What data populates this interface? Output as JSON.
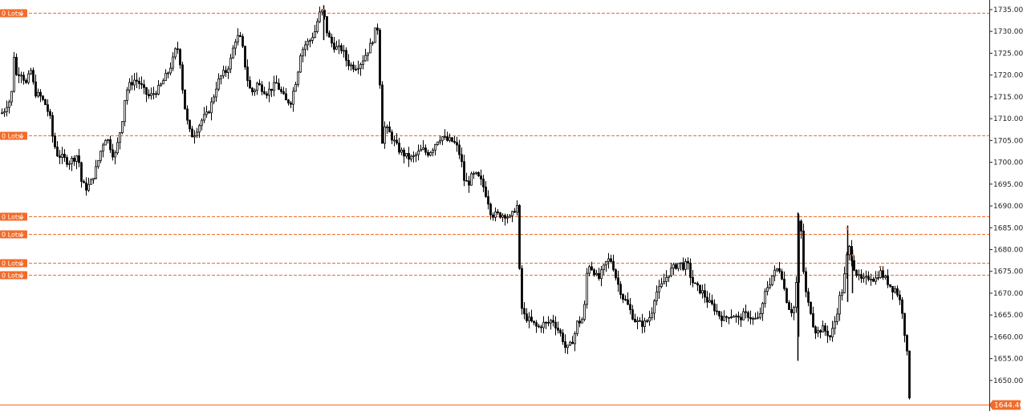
{
  "chart_data": {
    "type": "candlestick",
    "title": "",
    "xlabel": "",
    "ylabel": "",
    "ylim": [
      1643,
      1737.2
    ],
    "y_ticks": [
      "1735.00",
      "1730.00",
      "1725.00",
      "1720.00",
      "1715.00",
      "1710.00",
      "1705.00",
      "1700.00",
      "1695.00",
      "1690.00",
      "1685.00",
      "1680.00",
      "1675.00",
      "1670.00",
      "1665.00",
      "1660.00",
      "1655.00",
      "1650.00"
    ],
    "current_price": {
      "value": 1644.4,
      "label": "1644.40"
    },
    "order_levels": [
      {
        "price": 1734.2,
        "label": "0 Lots"
      },
      {
        "price": 1706.1,
        "label": "0 Lots"
      },
      {
        "price": 1687.7,
        "label": "0 Lots"
      },
      {
        "price": 1683.5,
        "label": "0 Lots"
      },
      {
        "price": 1676.9,
        "label": "0 Lots"
      },
      {
        "price": 1674.2,
        "label": "0 Lots"
      }
    ],
    "path": [
      [
        0,
        1712
      ],
      [
        3,
        1711
      ],
      [
        7,
        1713
      ],
      [
        11,
        1714
      ],
      [
        14,
        1716
      ],
      [
        16,
        1726
      ],
      [
        20,
        1720
      ],
      [
        25,
        1721
      ],
      [
        32,
        1718
      ],
      [
        38,
        1721
      ],
      [
        43,
        1716
      ],
      [
        50,
        1715
      ],
      [
        57,
        1713
      ],
      [
        62,
        1710
      ],
      [
        65,
        1706
      ],
      [
        70,
        1702
      ],
      [
        78,
        1701
      ],
      [
        85,
        1700
      ],
      [
        92,
        1701
      ],
      [
        97,
        1702
      ],
      [
        100,
        1696
      ],
      [
        106,
        1694
      ],
      [
        112,
        1695
      ],
      [
        120,
        1699
      ],
      [
        127,
        1704
      ],
      [
        132,
        1706
      ],
      [
        138,
        1703
      ],
      [
        142,
        1701
      ],
      [
        147,
        1705
      ],
      [
        152,
        1710
      ],
      [
        156,
        1716
      ],
      [
        162,
        1718
      ],
      [
        168,
        1719
      ],
      [
        174,
        1718
      ],
      [
        180,
        1716
      ],
      [
        186,
        1715
      ],
      [
        192,
        1716
      ],
      [
        198,
        1717
      ],
      [
        204,
        1719
      ],
      [
        210,
        1721
      ],
      [
        216,
        1724
      ],
      [
        220,
        1727
      ],
      [
        224,
        1723
      ],
      [
        228,
        1715
      ],
      [
        232,
        1710
      ],
      [
        236,
        1707
      ],
      [
        240,
        1706
      ],
      [
        246,
        1708
      ],
      [
        252,
        1710
      ],
      [
        258,
        1711
      ],
      [
        264,
        1714
      ],
      [
        270,
        1718
      ],
      [
        276,
        1720
      ],
      [
        282,
        1721
      ],
      [
        288,
        1724
      ],
      [
        292,
        1728
      ],
      [
        298,
        1729
      ],
      [
        302,
        1726
      ],
      [
        306,
        1721
      ],
      [
        310,
        1717
      ],
      [
        315,
        1716
      ],
      [
        320,
        1718
      ],
      [
        326,
        1717
      ],
      [
        332,
        1716
      ],
      [
        338,
        1717
      ],
      [
        344,
        1718
      ],
      [
        350,
        1716
      ],
      [
        356,
        1714
      ],
      [
        362,
        1714
      ],
      [
        366,
        1717
      ],
      [
        370,
        1720
      ],
      [
        374,
        1725
      ],
      [
        380,
        1727
      ],
      [
        386,
        1728
      ],
      [
        392,
        1730
      ],
      [
        396,
        1733
      ],
      [
        400,
        1735
      ],
      [
        404,
        1733
      ],
      [
        408,
        1729
      ],
      [
        414,
        1727
      ],
      [
        420,
        1726
      ],
      [
        426,
        1726
      ],
      [
        432,
        1723
      ],
      [
        438,
        1722
      ],
      [
        444,
        1722
      ],
      [
        450,
        1723
      ],
      [
        456,
        1725
      ],
      [
        462,
        1727
      ],
      [
        467,
        1730
      ],
      [
        471,
        1731
      ],
      [
        474,
        1712
      ],
      [
        476,
        1705
      ],
      [
        479,
        1708
      ],
      [
        484,
        1707
      ],
      [
        490,
        1705
      ],
      [
        496,
        1703
      ],
      [
        502,
        1702
      ],
      [
        508,
        1701
      ],
      [
        514,
        1701
      ],
      [
        520,
        1702
      ],
      [
        526,
        1703
      ],
      [
        532,
        1702
      ],
      [
        538,
        1703
      ],
      [
        544,
        1705
      ],
      [
        550,
        1706
      ],
      [
        556,
        1705
      ],
      [
        562,
        1705
      ],
      [
        568,
        1704
      ],
      [
        574,
        1701
      ],
      [
        578,
        1696
      ],
      [
        583,
        1695
      ],
      [
        588,
        1697
      ],
      [
        593,
        1697
      ],
      [
        598,
        1696
      ],
      [
        603,
        1694
      ],
      [
        608,
        1691
      ],
      [
        612,
        1688
      ],
      [
        618,
        1688
      ],
      [
        624,
        1688
      ],
      [
        630,
        1688
      ],
      [
        636,
        1687
      ],
      [
        640,
        1689
      ],
      [
        644,
        1690
      ],
      [
        646,
        1682
      ],
      [
        648,
        1668
      ],
      [
        652,
        1665
      ],
      [
        658,
        1664
      ],
      [
        664,
        1663
      ],
      [
        670,
        1662
      ],
      [
        676,
        1663
      ],
      [
        682,
        1663
      ],
      [
        688,
        1664
      ],
      [
        694,
        1662
      ],
      [
        700,
        1660
      ],
      [
        705,
        1657
      ],
      [
        710,
        1658
      ],
      [
        715,
        1660
      ],
      [
        720,
        1664
      ],
      [
        724,
        1663
      ],
      [
        728,
        1667
      ],
      [
        732,
        1677
      ],
      [
        736,
        1676
      ],
      [
        740,
        1675
      ],
      [
        745,
        1673
      ],
      [
        750,
        1675
      ],
      [
        755,
        1677
      ],
      [
        760,
        1678
      ],
      [
        764,
        1676
      ],
      [
        768,
        1673
      ],
      [
        772,
        1671
      ],
      [
        776,
        1669
      ],
      [
        780,
        1668
      ],
      [
        785,
        1666
      ],
      [
        790,
        1664
      ],
      [
        796,
        1663
      ],
      [
        802,
        1663
      ],
      [
        808,
        1664
      ],
      [
        812,
        1666
      ],
      [
        816,
        1670
      ],
      [
        822,
        1671
      ],
      [
        828,
        1673
      ],
      [
        834,
        1675
      ],
      [
        840,
        1676
      ],
      [
        846,
        1677
      ],
      [
        852,
        1676
      ],
      [
        856,
        1677
      ],
      [
        860,
        1674
      ],
      [
        864,
        1672
      ],
      [
        870,
        1671
      ],
      [
        876,
        1670
      ],
      [
        882,
        1668
      ],
      [
        888,
        1667
      ],
      [
        892,
        1666
      ],
      [
        896,
        1665
      ],
      [
        902,
        1664
      ],
      [
        908,
        1665
      ],
      [
        914,
        1665
      ],
      [
        920,
        1664
      ],
      [
        926,
        1665
      ],
      [
        932,
        1665
      ],
      [
        938,
        1664
      ],
      [
        944,
        1664
      ],
      [
        950,
        1667
      ],
      [
        954,
        1671
      ],
      [
        958,
        1672
      ],
      [
        962,
        1674
      ],
      [
        966,
        1675
      ],
      [
        970,
        1676
      ],
      [
        974,
        1674
      ],
      [
        978,
        1670
      ],
      [
        982,
        1667
      ],
      [
        986,
        1666
      ],
      [
        990,
        1667
      ],
      [
        993,
        1675
      ],
      [
        995,
        1686
      ],
      [
        998,
        1684
      ],
      [
        1002,
        1672
      ],
      [
        1006,
        1668
      ],
      [
        1010,
        1666
      ],
      [
        1014,
        1662
      ],
      [
        1018,
        1661
      ],
      [
        1024,
        1662
      ],
      [
        1030,
        1661
      ],
      [
        1034,
        1660
      ],
      [
        1038,
        1662
      ],
      [
        1042,
        1665
      ],
      [
        1046,
        1669
      ],
      [
        1050,
        1671
      ],
      [
        1054,
        1677
      ],
      [
        1057,
        1681
      ],
      [
        1060,
        1679
      ],
      [
        1064,
        1676
      ],
      [
        1068,
        1674
      ],
      [
        1072,
        1673
      ],
      [
        1078,
        1673
      ],
      [
        1084,
        1674
      ],
      [
        1090,
        1673
      ],
      [
        1096,
        1675
      ],
      [
        1100,
        1674
      ],
      [
        1104,
        1673
      ],
      [
        1108,
        1672
      ],
      [
        1112,
        1671
      ],
      [
        1116,
        1671
      ],
      [
        1120,
        1669
      ],
      [
        1124,
        1666
      ],
      [
        1127,
        1661
      ],
      [
        1130,
        1656
      ],
      [
        1132,
        1648
      ],
      [
        1134,
        1645
      ]
    ],
    "spikes": [
      {
        "x": 994,
        "high": 1688.5,
        "low": 1654.5
      },
      {
        "x": 995,
        "high": 1688.0,
        "low": 1660.0
      },
      {
        "x": 1056,
        "high": 1685.5,
        "low": 1668.0
      },
      {
        "x": 1062,
        "high": 1680.0,
        "low": 1670.0
      },
      {
        "x": 403,
        "high": 1736.0,
        "low": 1728.0
      }
    ]
  }
}
